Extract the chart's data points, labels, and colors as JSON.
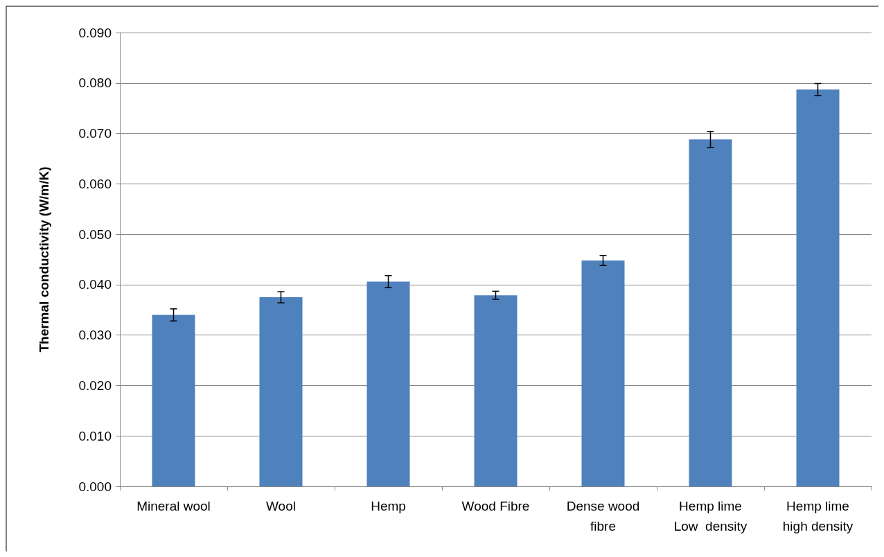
{
  "chart_data": {
    "type": "bar",
    "ylabel": "Thermal conductivity (W/m/K)",
    "categories": [
      "Mineral wool",
      "Wool",
      "Hemp",
      "Wood Fibre",
      "Dense wood\nfibre",
      "Hemp lime\nLow  density",
      "Hemp lime\nhigh density"
    ],
    "values": [
      0.034,
      0.0375,
      0.0406,
      0.0379,
      0.0448,
      0.0688,
      0.0787
    ],
    "errors": [
      0.0012,
      0.0011,
      0.0012,
      0.0008,
      0.001,
      0.0016,
      0.0012
    ],
    "color": "#4f81bd",
    "ylim": [
      0,
      0.09
    ],
    "yticks": [
      {
        "value": 0,
        "label": "0.000"
      },
      {
        "value": 0.01,
        "label": "0.010"
      },
      {
        "value": 0.02,
        "label": "0.020"
      },
      {
        "value": 0.03,
        "label": "0.030"
      },
      {
        "value": 0.04,
        "label": "0.040"
      },
      {
        "value": 0.05,
        "label": "0.050"
      },
      {
        "value": 0.06,
        "label": "0.060"
      },
      {
        "value": 0.07,
        "label": "0.070"
      },
      {
        "value": 0.08,
        "label": "0.080"
      },
      {
        "value": 0.09,
        "label": "0.090"
      }
    ],
    "grid": "y"
  }
}
